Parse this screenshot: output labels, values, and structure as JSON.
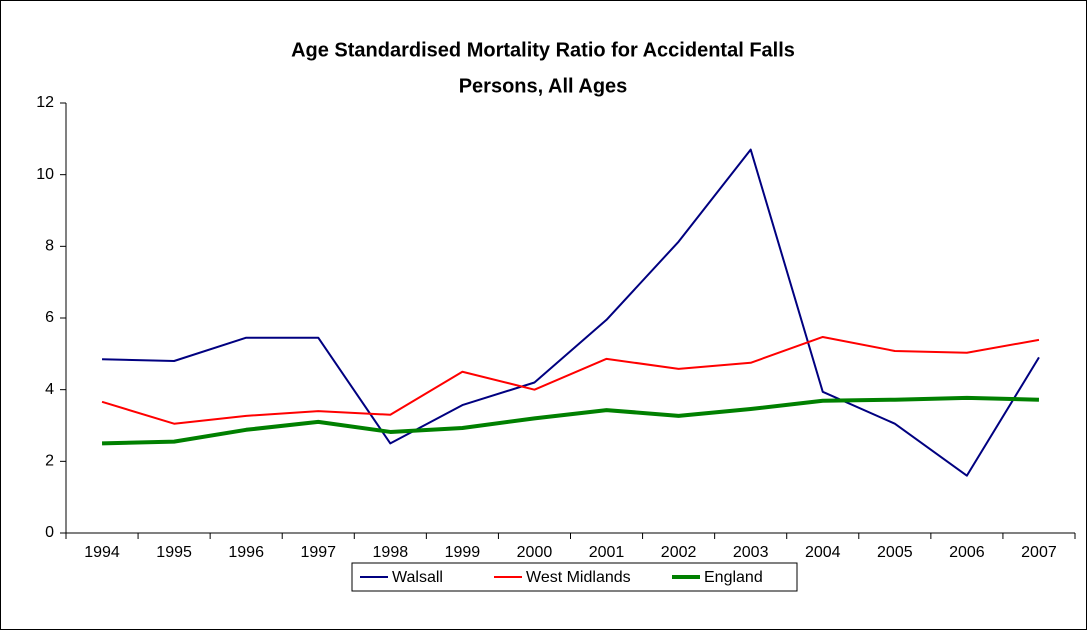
{
  "chart_data": {
    "type": "line",
    "title": "Age Standardised Mortality Ratio for Accidental Falls",
    "subtitle": "Persons, All Ages",
    "categories": [
      "1994",
      "1995",
      "1996",
      "1997",
      "1998",
      "1999",
      "2000",
      "2001",
      "2002",
      "2003",
      "2004",
      "2005",
      "2006",
      "2007"
    ],
    "series": [
      {
        "name": "Walsall",
        "color": "#000080",
        "width": 2,
        "values": [
          4.85,
          4.8,
          5.45,
          5.45,
          2.5,
          3.57,
          4.2,
          5.95,
          8.13,
          10.7,
          3.94,
          3.05,
          1.6,
          4.9
        ]
      },
      {
        "name": "West Midlands",
        "color": "#ff0000",
        "width": 2,
        "values": [
          3.66,
          3.05,
          3.27,
          3.4,
          3.3,
          4.5,
          4.0,
          4.86,
          4.58,
          4.75,
          5.47,
          5.08,
          5.03,
          5.39
        ]
      },
      {
        "name": "England",
        "color": "#008000",
        "width": 4,
        "values": [
          2.5,
          2.55,
          2.88,
          3.1,
          2.82,
          2.93,
          3.2,
          3.43,
          3.27,
          3.46,
          3.69,
          3.72,
          3.77,
          3.72
        ]
      }
    ],
    "ylim": [
      0,
      12
    ],
    "yticks": [
      0,
      2,
      4,
      6,
      8,
      10,
      12
    ],
    "grid": false,
    "legend": "bottom"
  }
}
